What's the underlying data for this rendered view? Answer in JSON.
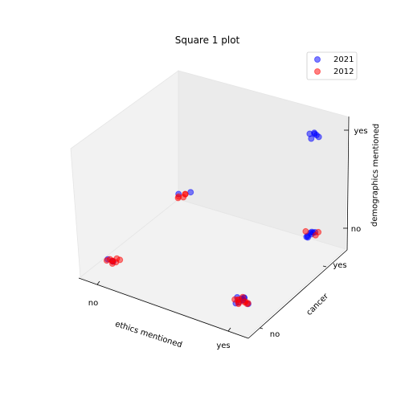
{
  "chart_data": {
    "type": "scatter",
    "projection": "3d",
    "title": "Square 1 plot",
    "xlabel": "ethics mentioned",
    "ylabel": "cancer",
    "zlabel": "demographics mentioned",
    "x_ticks": [
      "no",
      "yes"
    ],
    "y_ticks": [
      "no",
      "yes"
    ],
    "z_ticks": [
      "no",
      "yes"
    ],
    "legend_position": "top-right",
    "series": [
      {
        "name": "2021",
        "color": "#0000ff",
        "points": [
          {
            "x": "no",
            "y": "no",
            "z": "no"
          },
          {
            "x": "no",
            "y": "no",
            "z": "no"
          },
          {
            "x": "no",
            "y": "no",
            "z": "no"
          },
          {
            "x": "yes",
            "y": "no",
            "z": "no"
          },
          {
            "x": "yes",
            "y": "no",
            "z": "no"
          },
          {
            "x": "yes",
            "y": "no",
            "z": "no"
          },
          {
            "x": "yes",
            "y": "no",
            "z": "no"
          },
          {
            "x": "yes",
            "y": "no",
            "z": "no"
          },
          {
            "x": "yes",
            "y": "no",
            "z": "no"
          },
          {
            "x": "yes",
            "y": "no",
            "z": "no"
          },
          {
            "x": "yes",
            "y": "no",
            "z": "no"
          },
          {
            "x": "yes",
            "y": "no",
            "z": "no"
          },
          {
            "x": "no",
            "y": "yes",
            "z": "no"
          },
          {
            "x": "no",
            "y": "yes",
            "z": "no"
          },
          {
            "x": "yes",
            "y": "yes",
            "z": "no"
          },
          {
            "x": "yes",
            "y": "yes",
            "z": "no"
          },
          {
            "x": "yes",
            "y": "yes",
            "z": "no"
          },
          {
            "x": "yes",
            "y": "yes",
            "z": "no"
          },
          {
            "x": "yes",
            "y": "yes",
            "z": "no"
          },
          {
            "x": "yes",
            "y": "yes",
            "z": "no"
          },
          {
            "x": "yes",
            "y": "yes",
            "z": "no"
          },
          {
            "x": "yes",
            "y": "yes",
            "z": "no"
          },
          {
            "x": "yes",
            "y": "yes",
            "z": "yes"
          },
          {
            "x": "yes",
            "y": "yes",
            "z": "yes"
          },
          {
            "x": "yes",
            "y": "yes",
            "z": "yes"
          },
          {
            "x": "yes",
            "y": "yes",
            "z": "yes"
          },
          {
            "x": "yes",
            "y": "yes",
            "z": "yes"
          },
          {
            "x": "yes",
            "y": "yes",
            "z": "yes"
          }
        ]
      },
      {
        "name": "2012",
        "color": "#ff0000",
        "points": [
          {
            "x": "no",
            "y": "no",
            "z": "no"
          },
          {
            "x": "no",
            "y": "no",
            "z": "no"
          },
          {
            "x": "no",
            "y": "no",
            "z": "no"
          },
          {
            "x": "no",
            "y": "no",
            "z": "no"
          },
          {
            "x": "no",
            "y": "no",
            "z": "no"
          },
          {
            "x": "no",
            "y": "no",
            "z": "no"
          },
          {
            "x": "no",
            "y": "no",
            "z": "no"
          },
          {
            "x": "no",
            "y": "no",
            "z": "no"
          },
          {
            "x": "yes",
            "y": "no",
            "z": "no"
          },
          {
            "x": "yes",
            "y": "no",
            "z": "no"
          },
          {
            "x": "yes",
            "y": "no",
            "z": "no"
          },
          {
            "x": "yes",
            "y": "no",
            "z": "no"
          },
          {
            "x": "yes",
            "y": "no",
            "z": "no"
          },
          {
            "x": "yes",
            "y": "no",
            "z": "no"
          },
          {
            "x": "yes",
            "y": "no",
            "z": "no"
          },
          {
            "x": "yes",
            "y": "no",
            "z": "no"
          },
          {
            "x": "yes",
            "y": "no",
            "z": "no"
          },
          {
            "x": "yes",
            "y": "no",
            "z": "no"
          },
          {
            "x": "no",
            "y": "yes",
            "z": "no"
          },
          {
            "x": "no",
            "y": "yes",
            "z": "no"
          },
          {
            "x": "no",
            "y": "yes",
            "z": "no"
          },
          {
            "x": "no",
            "y": "yes",
            "z": "no"
          },
          {
            "x": "no",
            "y": "yes",
            "z": "no"
          },
          {
            "x": "yes",
            "y": "yes",
            "z": "no"
          },
          {
            "x": "yes",
            "y": "yes",
            "z": "no"
          },
          {
            "x": "yes",
            "y": "yes",
            "z": "no"
          }
        ]
      }
    ]
  }
}
